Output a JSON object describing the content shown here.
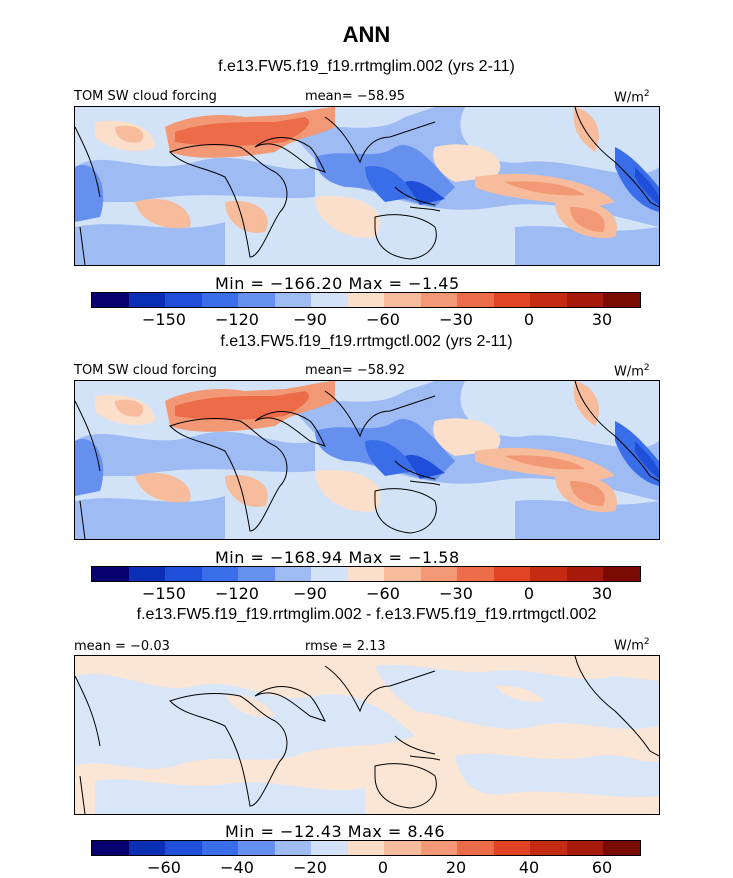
{
  "figure": {
    "title": "ANN",
    "panels": [
      {
        "case_label": "f.e13.FW5.f19_f19.rrtmglim.002 (yrs 2-11)",
        "left_label": "TOM SW cloud forcing",
        "center_label": "mean= −58.95",
        "units": "W/m",
        "units_sup": "2",
        "stats": "Min = −166.20 Max = −1.45",
        "colorbar_ticks": [
          "−150",
          "−120",
          "−90",
          "−60",
          "−30",
          "0",
          "30"
        ]
      },
      {
        "case_label": "f.e13.FW5.f19_f19.rrtmgctl.002 (yrs 2-11)",
        "left_label": "TOM SW cloud forcing",
        "center_label": "mean= −58.92",
        "units": "W/m",
        "units_sup": "2",
        "stats": "Min = −168.94 Max = −1.58",
        "colorbar_ticks": [
          "−150",
          "−120",
          "−90",
          "−60",
          "−30",
          "0",
          "30"
        ]
      },
      {
        "case_label": "f.e13.FW5.f19_f19.rrtmglim.002 - f.e13.FW5.f19_f19.rrtmgctl.002",
        "left_label": "mean = −0.03",
        "center_label": "rmse = 2.13",
        "units": "W/m",
        "units_sup": "2",
        "stats": "Min = −12.43 Max = 8.46",
        "colorbar_ticks": [
          "−60",
          "−40",
          "−20",
          "0",
          "20",
          "40",
          "60"
        ]
      }
    ],
    "colorbar_colors": [
      "#08006e",
      "#0a2fb5",
      "#1f4fd8",
      "#3a6ee8",
      "#6690ee",
      "#9ebbf3",
      "#d2e3f8",
      "#fbdfcb",
      "#f7bc9b",
      "#f29874",
      "#ec6b48",
      "#e14424",
      "#c52a12",
      "#a51a0a",
      "#7a0b04"
    ]
  }
}
